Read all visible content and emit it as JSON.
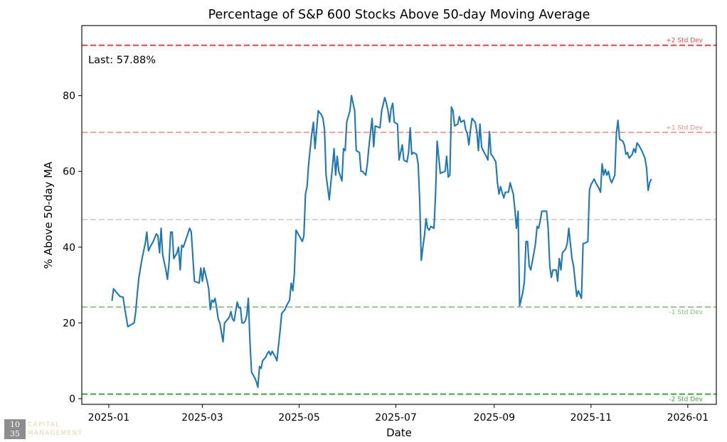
{
  "chart_data": {
    "type": "line",
    "title": "Percentage of S&P 600 Stocks Above 50-day Moving Average",
    "xlabel": "Date",
    "ylabel": "% Above 50-day MA",
    "ylim": [
      -1.5,
      98.5
    ],
    "yticks": [
      0,
      20,
      40,
      60,
      80
    ],
    "ytick_labels": [
      "0",
      "20",
      "40",
      "60",
      "80"
    ],
    "xticks": [
      {
        "day": 0,
        "label": "2025-01"
      },
      {
        "day": 59,
        "label": "2025-03"
      },
      {
        "day": 120,
        "label": "2025-05"
      },
      {
        "day": 181,
        "label": "2025-07"
      },
      {
        "day": 243,
        "label": "2025-09"
      },
      {
        "day": 304,
        "label": "2025-11"
      },
      {
        "day": 365,
        "label": "2026-01"
      }
    ],
    "xlim": [
      -17,
      383
    ],
    "annotation": "Last: 57.88%",
    "reference_lines": [
      {
        "name": "plus-2-std-line",
        "label": "+2 Std Dev",
        "value": 93.3,
        "color": "#e03030",
        "opacity": 0.9,
        "width": 2
      },
      {
        "name": "plus-1-std-line",
        "label": "+1 Std Dev",
        "value": 70.3,
        "color": "#ea5a5a",
        "opacity": 0.7,
        "width": 1.6
      },
      {
        "name": "mean-line",
        "label": "",
        "value": 47.3,
        "color": "#a8a8a8",
        "opacity": 0.6,
        "width": 1.6
      },
      {
        "name": "minus-1-std-line",
        "label": "-1 Std Dev",
        "value": 24.2,
        "color": "#45a845",
        "opacity": 0.7,
        "width": 1.6
      },
      {
        "name": "minus-2-std-line",
        "label": "-2 Std Dev",
        "value": 1.2,
        "color": "#2a9a2a",
        "opacity": 0.9,
        "width": 2
      }
    ],
    "series": [
      {
        "name": "% Above 50-day MA",
        "color": "#1f77b4",
        "points": [
          [
            2,
            25.8
          ],
          [
            3,
            29
          ],
          [
            5,
            28
          ],
          [
            7,
            27
          ],
          [
            9,
            26.8
          ],
          [
            10,
            24
          ],
          [
            12,
            19
          ],
          [
            14,
            19.5
          ],
          [
            16,
            20
          ],
          [
            17,
            23
          ],
          [
            18,
            28
          ],
          [
            19,
            32
          ],
          [
            21,
            37
          ],
          [
            23,
            41
          ],
          [
            24,
            44
          ],
          [
            25,
            39
          ],
          [
            26,
            40
          ],
          [
            28,
            41.5
          ],
          [
            30,
            43.5
          ],
          [
            31,
            43
          ],
          [
            32,
            38.5
          ],
          [
            33,
            45
          ],
          [
            34,
            38
          ],
          [
            36,
            34
          ],
          [
            37,
            31.5
          ],
          [
            38,
            36
          ],
          [
            39,
            44
          ],
          [
            40,
            44
          ],
          [
            41,
            37
          ],
          [
            43,
            38.5
          ],
          [
            44,
            40
          ],
          [
            45,
            34
          ],
          [
            46,
            40.5
          ],
          [
            47,
            40
          ],
          [
            49,
            42.5
          ],
          [
            51,
            45
          ],
          [
            52,
            44
          ],
          [
            54,
            31
          ],
          [
            57,
            30.5
          ],
          [
            58,
            34.5
          ],
          [
            59,
            31
          ],
          [
            60,
            34.5
          ],
          [
            62,
            31
          ],
          [
            63,
            29
          ],
          [
            64,
            23.5
          ],
          [
            65,
            26
          ],
          [
            66,
            25.5
          ],
          [
            67,
            26.5
          ],
          [
            68,
            24
          ],
          [
            69,
            21
          ],
          [
            70,
            20
          ],
          [
            72,
            15
          ],
          [
            73,
            20
          ],
          [
            75,
            21
          ],
          [
            76,
            21.5
          ],
          [
            77,
            23
          ],
          [
            78,
            21
          ],
          [
            79,
            20.5
          ],
          [
            80,
            23
          ],
          [
            81,
            25.5
          ],
          [
            82,
            24
          ],
          [
            83,
            24
          ],
          [
            84,
            20
          ],
          [
            85,
            20
          ],
          [
            86,
            20.5
          ],
          [
            87,
            22
          ],
          [
            88,
            26.5
          ],
          [
            89,
            15
          ],
          [
            90,
            7
          ],
          [
            92,
            5.5
          ],
          [
            93,
            4.5
          ],
          [
            94,
            3
          ],
          [
            95,
            8.5
          ],
          [
            96,
            8
          ],
          [
            97,
            10
          ],
          [
            99,
            11
          ],
          [
            100,
            12
          ],
          [
            101,
            12.5
          ],
          [
            102,
            11.5
          ],
          [
            103,
            12.5
          ],
          [
            105,
            11
          ],
          [
            106,
            10
          ],
          [
            107,
            14
          ],
          [
            108,
            18
          ],
          [
            109,
            22.5
          ],
          [
            111,
            23.5
          ],
          [
            112,
            24.5
          ],
          [
            114,
            26
          ],
          [
            115,
            30.5
          ],
          [
            116,
            28.5
          ],
          [
            117,
            33
          ],
          [
            118,
            44.5
          ],
          [
            120,
            43
          ],
          [
            122,
            41.5
          ],
          [
            123,
            43
          ],
          [
            124,
            54
          ],
          [
            125,
            56
          ],
          [
            126,
            62
          ],
          [
            128,
            70
          ],
          [
            129,
            73
          ],
          [
            130,
            66
          ],
          [
            132,
            76
          ],
          [
            134,
            75
          ],
          [
            135,
            74
          ],
          [
            136,
            71
          ],
          [
            137,
            59
          ],
          [
            139,
            52.5
          ],
          [
            140,
            57
          ],
          [
            141,
            61
          ],
          [
            142,
            66
          ],
          [
            143,
            59
          ],
          [
            144,
            64
          ],
          [
            145,
            60
          ],
          [
            147,
            57.5
          ],
          [
            148,
            66
          ],
          [
            149,
            65.5
          ],
          [
            150,
            73
          ],
          [
            152,
            76
          ],
          [
            153,
            80
          ],
          [
            155,
            76
          ],
          [
            156,
            65.5
          ],
          [
            158,
            65
          ],
          [
            159,
            60
          ],
          [
            160,
            60
          ],
          [
            162,
            59
          ],
          [
            163,
            62
          ],
          [
            164,
            66.5
          ],
          [
            166,
            74
          ],
          [
            167,
            66.5
          ],
          [
            168,
            72
          ],
          [
            171,
            71.5
          ],
          [
            172,
            76
          ],
          [
            174,
            79.5
          ],
          [
            175,
            78
          ],
          [
            176,
            76
          ],
          [
            177,
            73
          ],
          [
            178,
            76.5
          ],
          [
            179,
            78
          ],
          [
            180,
            73
          ],
          [
            182,
            72.5
          ],
          [
            183,
            63
          ],
          [
            184,
            65
          ],
          [
            185,
            67
          ],
          [
            186,
            63
          ],
          [
            188,
            62.5
          ],
          [
            189,
            65
          ],
          [
            190,
            71.5
          ],
          [
            191,
            64.5
          ],
          [
            192,
            65
          ],
          [
            194,
            64.5
          ],
          [
            195,
            62
          ],
          [
            196,
            52.5
          ],
          [
            197,
            36.5
          ],
          [
            198,
            40
          ],
          [
            199,
            43
          ],
          [
            200,
            47.5
          ],
          [
            201,
            45
          ],
          [
            202,
            44.5
          ],
          [
            203,
            45.5
          ],
          [
            205,
            45
          ],
          [
            206,
            54
          ],
          [
            207,
            68
          ],
          [
            209,
            59.5
          ],
          [
            212,
            60
          ],
          [
            213,
            64
          ],
          [
            214,
            58.5
          ],
          [
            215,
            59
          ],
          [
            216,
            77
          ],
          [
            217,
            76
          ],
          [
            218,
            72
          ],
          [
            220,
            72.5
          ],
          [
            221,
            74.5
          ],
          [
            222,
            73
          ],
          [
            224,
            73.5
          ],
          [
            225,
            71
          ],
          [
            226,
            70
          ],
          [
            227,
            67
          ],
          [
            228,
            71
          ],
          [
            229,
            74
          ],
          [
            231,
            73
          ],
          [
            232,
            70.5
          ],
          [
            233,
            65.5
          ],
          [
            234,
            72.5
          ],
          [
            235,
            66.5
          ],
          [
            236,
            65.5
          ],
          [
            238,
            64
          ],
          [
            239,
            63
          ],
          [
            240,
            70.5
          ],
          [
            241,
            64.5
          ],
          [
            242,
            64
          ],
          [
            244,
            62.5
          ],
          [
            245,
            57
          ],
          [
            246,
            54
          ],
          [
            247,
            56
          ],
          [
            248,
            54.5
          ],
          [
            249,
            53
          ],
          [
            250,
            54.5
          ],
          [
            252,
            54.5
          ],
          [
            253,
            57
          ],
          [
            255,
            54
          ],
          [
            256,
            50
          ],
          [
            257,
            45
          ],
          [
            258,
            49.5
          ],
          [
            259,
            24.5
          ],
          [
            261,
            28
          ],
          [
            262,
            31
          ],
          [
            263,
            41.5
          ],
          [
            264,
            41.5
          ],
          [
            265,
            35
          ],
          [
            266,
            34
          ],
          [
            268,
            38.5
          ],
          [
            269,
            41
          ],
          [
            270,
            45.5
          ],
          [
            271,
            45
          ],
          [
            272,
            47
          ],
          [
            273,
            49.5
          ],
          [
            276,
            49.5
          ],
          [
            277,
            45
          ],
          [
            278,
            35
          ],
          [
            279,
            32
          ],
          [
            280,
            34
          ],
          [
            282,
            34
          ],
          [
            283,
            31
          ],
          [
            284,
            37
          ],
          [
            285,
            34
          ],
          [
            286,
            38.5
          ],
          [
            288,
            39.5
          ],
          [
            289,
            41
          ],
          [
            290,
            45
          ],
          [
            291,
            41
          ],
          [
            292,
            37
          ],
          [
            293,
            35
          ],
          [
            294,
            31
          ],
          [
            295,
            27
          ],
          [
            296,
            28.5
          ],
          [
            297,
            27.5
          ],
          [
            298,
            26.5
          ],
          [
            299,
            41
          ],
          [
            300,
            41
          ],
          [
            302,
            41.5
          ],
          [
            303,
            55
          ],
          [
            304,
            56.5
          ],
          [
            306,
            58
          ],
          [
            307,
            57
          ],
          [
            309,
            55.5
          ],
          [
            310,
            54.5
          ],
          [
            311,
            62
          ],
          [
            312,
            59
          ],
          [
            313,
            60.5
          ],
          [
            314,
            59
          ],
          [
            315,
            60
          ],
          [
            316,
            58
          ],
          [
            317,
            57
          ],
          [
            319,
            59
          ],
          [
            320,
            70
          ],
          [
            321,
            73.5
          ],
          [
            322,
            68.5
          ],
          [
            324,
            68
          ],
          [
            325,
            67
          ],
          [
            326,
            64.5
          ],
          [
            327,
            65
          ],
          [
            328,
            63.5
          ],
          [
            330,
            64.5
          ],
          [
            331,
            66
          ],
          [
            332,
            65
          ],
          [
            333,
            67.5
          ],
          [
            334,
            67
          ],
          [
            336,
            65.5
          ],
          [
            338,
            63.5
          ],
          [
            339,
            61
          ],
          [
            340,
            55
          ],
          [
            341,
            57
          ],
          [
            342,
            58
          ]
        ]
      }
    ]
  },
  "watermark": {
    "line1": "10",
    "line2": "35",
    "name_line1": "CAPITAL",
    "name_line2": "MANAGEMENT"
  }
}
